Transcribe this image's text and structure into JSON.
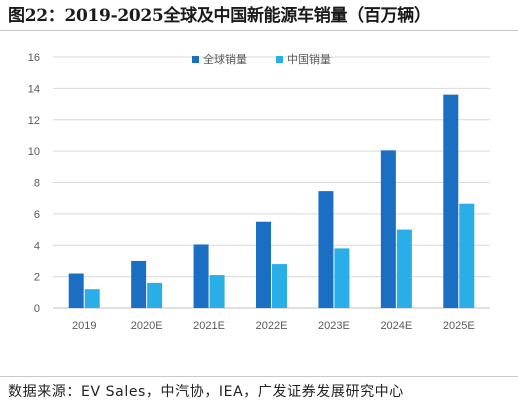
{
  "header": {
    "title": "图22：2019-2025全球及中国新能源车销量（百万辆）"
  },
  "footer": {
    "source": "数据来源：EV Sales，中汽协，IEA，广发证券发展研究中心"
  },
  "chart_data": {
    "type": "bar",
    "title": "",
    "xlabel": "",
    "ylabel": "",
    "categories": [
      "2019",
      "2020E",
      "2021E",
      "2022E",
      "2023E",
      "2024E",
      "2025E"
    ],
    "series": [
      {
        "name": "全球销量",
        "color": "#1a6fc2",
        "values": [
          2.2,
          3.0,
          4.05,
          5.5,
          7.45,
          10.05,
          13.6
        ]
      },
      {
        "name": "中国销量",
        "color": "#29aee8",
        "values": [
          1.2,
          1.6,
          2.1,
          2.8,
          3.8,
          5.0,
          6.65
        ]
      }
    ],
    "ylim": [
      0,
      16
    ],
    "yticks": [
      0,
      2,
      4,
      6,
      8,
      10,
      12,
      14,
      16
    ],
    "grid": true,
    "legend": "top-center"
  }
}
